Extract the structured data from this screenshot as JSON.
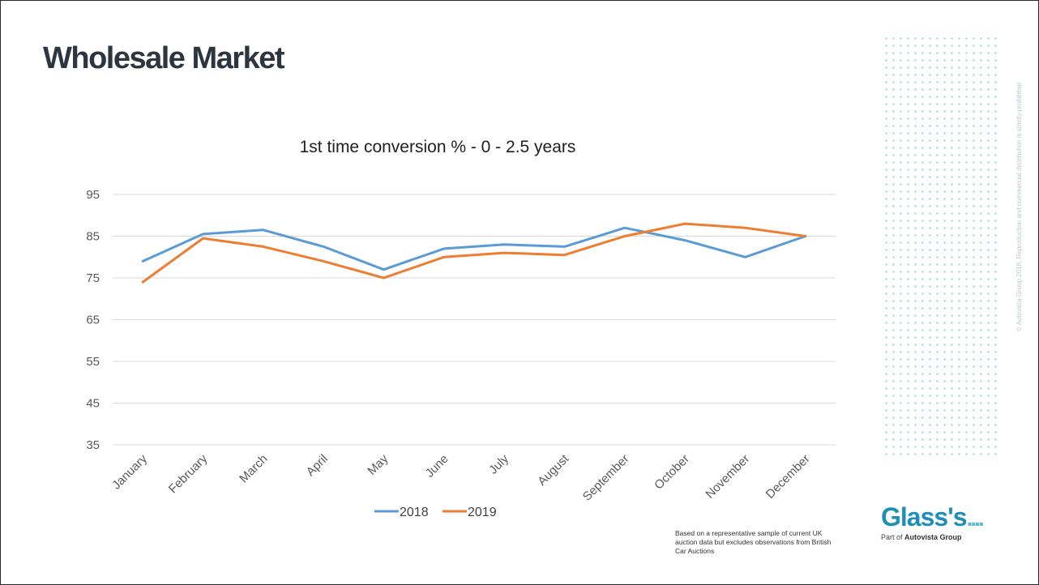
{
  "slide": {
    "title": "Wholesale Market",
    "footnote": "Based on a representative sample of current UK auction data but excludes observations from British Car Auctions",
    "copyright": "© Autovista Group 2018. Reproduction and commercial distribution is strictly prohibited",
    "brand": {
      "name": "Glass's",
      "tagline_prefix": "Part of",
      "tagline_company": "Autovista Group",
      "primary_color": "#1f8fb8"
    }
  },
  "chart_data": {
    "type": "line",
    "title": "1st time conversion % - 0 - 2.5 years",
    "categories": [
      "January",
      "February",
      "March",
      "April",
      "May",
      "June",
      "July",
      "August",
      "September",
      "October",
      "November",
      "December"
    ],
    "series": [
      {
        "name": "2018",
        "color": "#5b9bd5",
        "values": [
          79,
          85.5,
          86.5,
          82.5,
          77,
          82,
          83,
          82.5,
          87,
          84,
          80,
          85
        ]
      },
      {
        "name": "2019",
        "color": "#ed7d31",
        "values": [
          74,
          84.5,
          82.5,
          79,
          75,
          80,
          81,
          80.5,
          85,
          88,
          87,
          85
        ]
      }
    ],
    "yticks": [
      35,
      45,
      55,
      65,
      75,
      85,
      95
    ],
    "ylim": [
      35,
      95
    ],
    "grid": true,
    "legend": "bottom",
    "xlabel": "",
    "ylabel": ""
  }
}
